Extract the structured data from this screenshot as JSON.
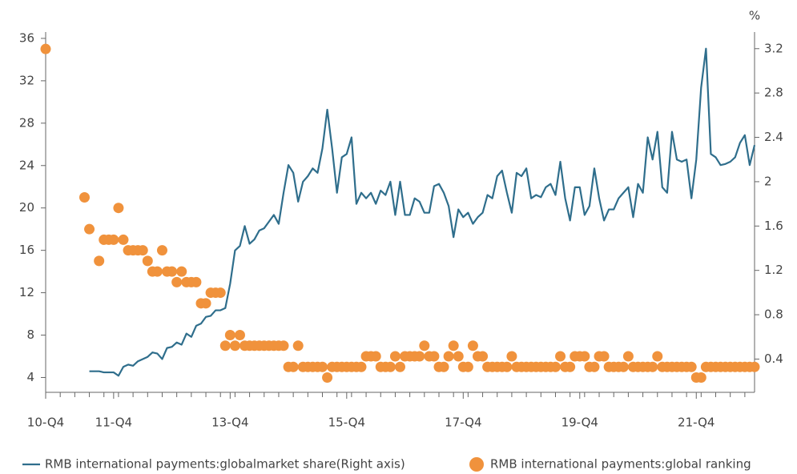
{
  "chart_data": {
    "type": "line",
    "y2_label": "%",
    "categories": [
      "10-Q4",
      null,
      null,
      null,
      null,
      null,
      null,
      null,
      null,
      null,
      null,
      null,
      null,
      null,
      "11-Q4",
      null,
      null,
      null,
      null,
      null,
      null,
      null,
      null,
      null,
      null,
      null,
      null,
      null,
      null,
      null,
      null,
      null,
      null,
      null,
      null,
      null,
      null,
      null,
      "13-Q4",
      null,
      null,
      null,
      null,
      null,
      null,
      null,
      null,
      null,
      null,
      null,
      null,
      null,
      null,
      null,
      null,
      null,
      null,
      null,
      null,
      null,
      null,
      null,
      "15-Q4",
      null,
      null,
      null,
      null,
      null,
      null,
      null,
      null,
      null,
      null,
      null,
      null,
      null,
      null,
      null,
      null,
      null,
      null,
      null,
      null,
      null,
      null,
      null,
      "17-Q4",
      null,
      null,
      null,
      null,
      null,
      null,
      null,
      null,
      null,
      null,
      null,
      null,
      null,
      null,
      null,
      null,
      null,
      null,
      null,
      null,
      null,
      null,
      null,
      "19-Q4",
      null,
      null,
      null,
      null,
      null,
      null,
      null,
      null,
      null,
      null,
      null,
      null,
      null,
      null,
      null,
      null,
      null,
      null,
      null,
      null,
      null,
      null,
      null,
      "21-Q4",
      null,
      null,
      null,
      null,
      null,
      null,
      null,
      null,
      null,
      null,
      null,
      null
    ],
    "series": [
      {
        "name": "RMB international payments:globalmarket share(Right axis)",
        "type": "line",
        "axis": "y2",
        "color": "#2f6e8c",
        "values": [
          null,
          null,
          null,
          null,
          null,
          null,
          null,
          null,
          null,
          0.29,
          0.29,
          0.29,
          0.28,
          0.28,
          0.28,
          0.25,
          0.33,
          0.35,
          0.34,
          0.38,
          0.4,
          0.42,
          0.46,
          0.45,
          0.4,
          0.5,
          0.51,
          0.55,
          0.53,
          0.63,
          0.6,
          0.7,
          0.72,
          0.78,
          0.79,
          0.84,
          0.84,
          0.86,
          1.08,
          1.38,
          1.42,
          1.6,
          1.44,
          1.48,
          1.56,
          1.58,
          1.64,
          1.7,
          1.62,
          1.9,
          2.15,
          2.08,
          1.82,
          2.0,
          2.05,
          2.12,
          2.08,
          2.3,
          2.65,
          2.3,
          1.9,
          2.22,
          2.25,
          2.4,
          1.8,
          1.9,
          1.85,
          1.9,
          1.8,
          1.92,
          1.88,
          2.0,
          1.7,
          2.0,
          1.7,
          1.7,
          1.85,
          1.82,
          1.72,
          1.72,
          1.96,
          1.98,
          1.9,
          1.78,
          1.5,
          1.75,
          1.68,
          1.72,
          1.62,
          1.68,
          1.72,
          1.88,
          1.85,
          2.05,
          2.1,
          1.9,
          1.72,
          2.08,
          2.05,
          2.12,
          1.85,
          1.88,
          1.86,
          1.95,
          1.98,
          1.88,
          2.18,
          1.85,
          1.65,
          1.95,
          1.95,
          1.7,
          1.78,
          2.12,
          1.85,
          1.65,
          1.75,
          1.75,
          1.85,
          1.9,
          1.95,
          1.68,
          1.98,
          1.9,
          2.4,
          2.2,
          2.45,
          1.95,
          1.9,
          2.45,
          2.2,
          2.18,
          2.2,
          1.85,
          2.2,
          2.85,
          3.2,
          2.25,
          2.22,
          2.15,
          2.16,
          2.18,
          2.22,
          2.35,
          2.42,
          2.15,
          2.33
        ]
      },
      {
        "name": "RMB international payments:global ranking",
        "type": "scatter",
        "axis": "y",
        "color": "#f0923c",
        "values": [
          35,
          null,
          null,
          null,
          null,
          null,
          null,
          null,
          21,
          18,
          null,
          15,
          17,
          17,
          17,
          20,
          17,
          16,
          16,
          16,
          16,
          15,
          14,
          14,
          16,
          14,
          14,
          13,
          14,
          13,
          13,
          13,
          11,
          11,
          12,
          12,
          12,
          7,
          8,
          7,
          8,
          7,
          7,
          7,
          7,
          7,
          7,
          7,
          7,
          7,
          5,
          5,
          7,
          5,
          5,
          5,
          5,
          5,
          4,
          5,
          5,
          5,
          5,
          5,
          5,
          5,
          6,
          6,
          6,
          5,
          5,
          5,
          6,
          5,
          6,
          6,
          6,
          6,
          7,
          6,
          6,
          5,
          5,
          6,
          7,
          6,
          5,
          5,
          7,
          6,
          6,
          5,
          5,
          5,
          5,
          5,
          6,
          5,
          5,
          5,
          5,
          5,
          5,
          5,
          5,
          5,
          6,
          5,
          5,
          6,
          6,
          6,
          5,
          5,
          6,
          6,
          5,
          5,
          5,
          5,
          6,
          5,
          5,
          5,
          5,
          5,
          6,
          5,
          5,
          5,
          5,
          5,
          5,
          5,
          4,
          4,
          5,
          5,
          5,
          5,
          5,
          5,
          5,
          5,
          5,
          5,
          5
        ]
      }
    ],
    "ylim": [
      2.6,
      36.6
    ],
    "yticks": [
      4,
      8,
      12,
      16,
      20,
      24,
      28,
      32,
      36
    ],
    "y2lim": [
      0.1,
      3.35
    ],
    "y2ticks": [
      0.4,
      0.8,
      1.2,
      1.6,
      2,
      2.4,
      2.8,
      3.2
    ],
    "grid": false
  }
}
